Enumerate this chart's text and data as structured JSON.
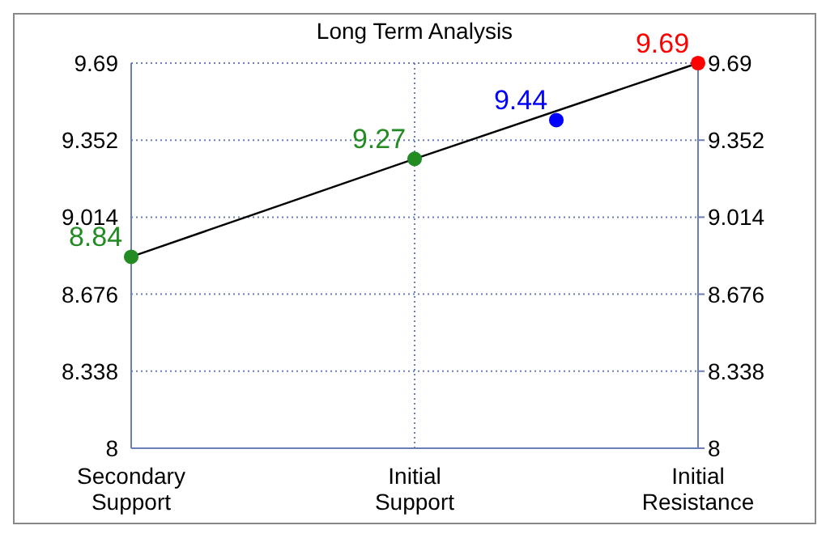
{
  "chart_data": {
    "type": "scatter",
    "title": "Long Term Analysis",
    "categories": [
      "Secondary Support",
      null,
      "Initial Support",
      null,
      "Initial Resistance"
    ],
    "series": [
      {
        "type": "line",
        "color": "#000000",
        "x": [
          "Secondary Support",
          "Initial Support",
          "Initial Resistance"
        ],
        "values": [
          8.84,
          9.27,
          9.69
        ],
        "marker": "none"
      },
      {
        "type": "scatter",
        "values": [
          8.84,
          null,
          9.27,
          9.44,
          9.69
        ],
        "value_labels": [
          "8.84",
          null,
          "9.27",
          "9.44",
          "9.69"
        ],
        "colors": [
          "#228b22",
          null,
          "#228b22",
          "#0000ff",
          "#ff0000"
        ],
        "marker": "circle"
      }
    ],
    "ylim": [
      8,
      9.69
    ],
    "yticks": [
      8,
      8.338,
      8.676,
      9.014,
      9.352,
      9.69
    ],
    "y2lim": [
      8,
      9.69
    ],
    "y2ticks": [
      8,
      8.338,
      8.676,
      9.014,
      9.352,
      9.69
    ],
    "grid": true
  }
}
